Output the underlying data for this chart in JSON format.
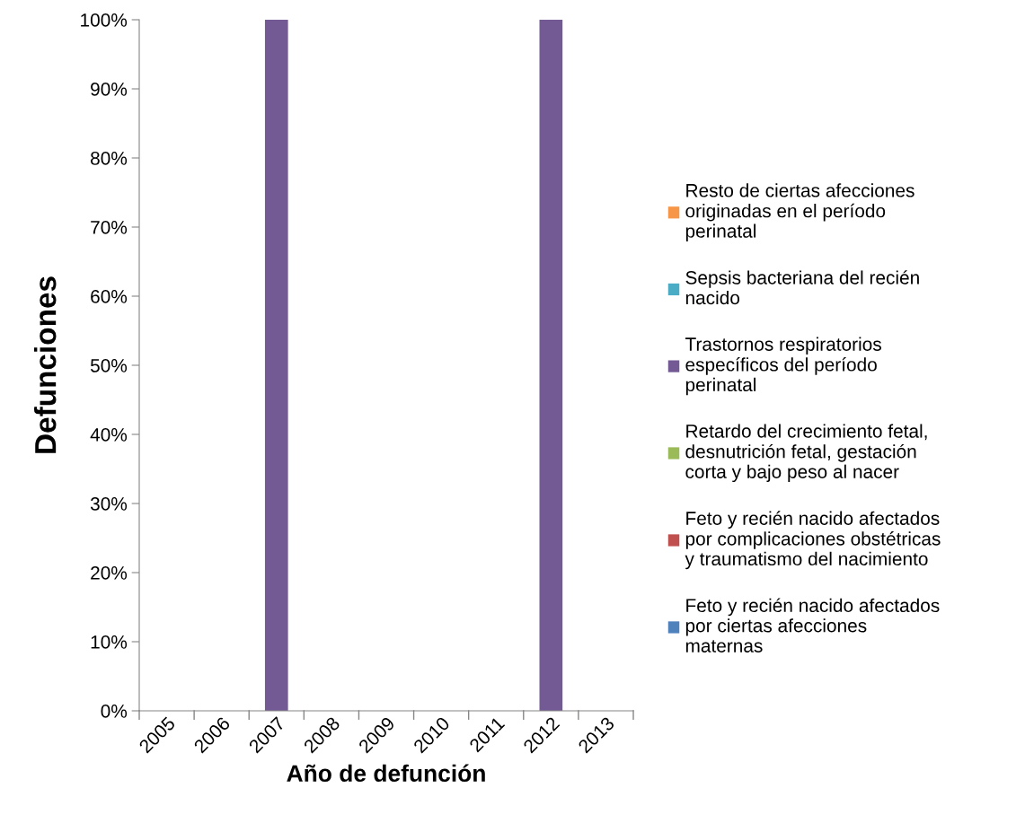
{
  "chart_data": {
    "type": "bar",
    "stacked": true,
    "xlabel": "Año de defunción",
    "ylabel": "Defunciones",
    "categories": [
      "2005",
      "2006",
      "2007",
      "2008",
      "2009",
      "2010",
      "2011",
      "2012",
      "2013"
    ],
    "series": [
      {
        "name": "Feto y recién nacido afectados por ciertas afecciones maternas",
        "color": "#4f81bd",
        "values": [
          0,
          0,
          0,
          0,
          0,
          0,
          0,
          0,
          0
        ]
      },
      {
        "name": "Feto y recién nacido afectados por complicaciones obstétricas y traumatismo del nacimiento",
        "color": "#c0504d",
        "values": [
          0,
          0,
          0,
          0,
          0,
          0,
          0,
          0,
          0
        ]
      },
      {
        "name": "Retardo del crecimiento fetal, desnutrición fetal, gestación corta y bajo peso al nacer",
        "color": "#9bbb59",
        "values": [
          0,
          0,
          0,
          0,
          0,
          0,
          0,
          0,
          0
        ]
      },
      {
        "name": "Trastornos respiratorios específicos del período perinatal",
        "color": "#735a95",
        "values": [
          0,
          0,
          100,
          0,
          0,
          0,
          0,
          100,
          0
        ]
      },
      {
        "name": "Sepsis bacteriana del recién nacido",
        "color": "#4bacc6",
        "values": [
          0,
          0,
          0,
          0,
          0,
          0,
          0,
          0,
          0
        ]
      },
      {
        "name": "Resto de ciertas afecciones originadas en el período perinatal",
        "color": "#f79646",
        "values": [
          0,
          0,
          0,
          0,
          0,
          0,
          0,
          0,
          0
        ]
      }
    ],
    "ylim": [
      0,
      100
    ],
    "yticks": [
      {
        "value": 0,
        "label": "0%"
      },
      {
        "value": 10,
        "label": "10%"
      },
      {
        "value": 20,
        "label": "20%"
      },
      {
        "value": 30,
        "label": "30%"
      },
      {
        "value": 40,
        "label": "40%"
      },
      {
        "value": 50,
        "label": "50%"
      },
      {
        "value": 60,
        "label": "60%"
      },
      {
        "value": 70,
        "label": "70%"
      },
      {
        "value": 80,
        "label": "80%"
      },
      {
        "value": 90,
        "label": "90%"
      },
      {
        "value": 100,
        "label": "100%"
      }
    ],
    "grid": false,
    "legend": "right"
  }
}
